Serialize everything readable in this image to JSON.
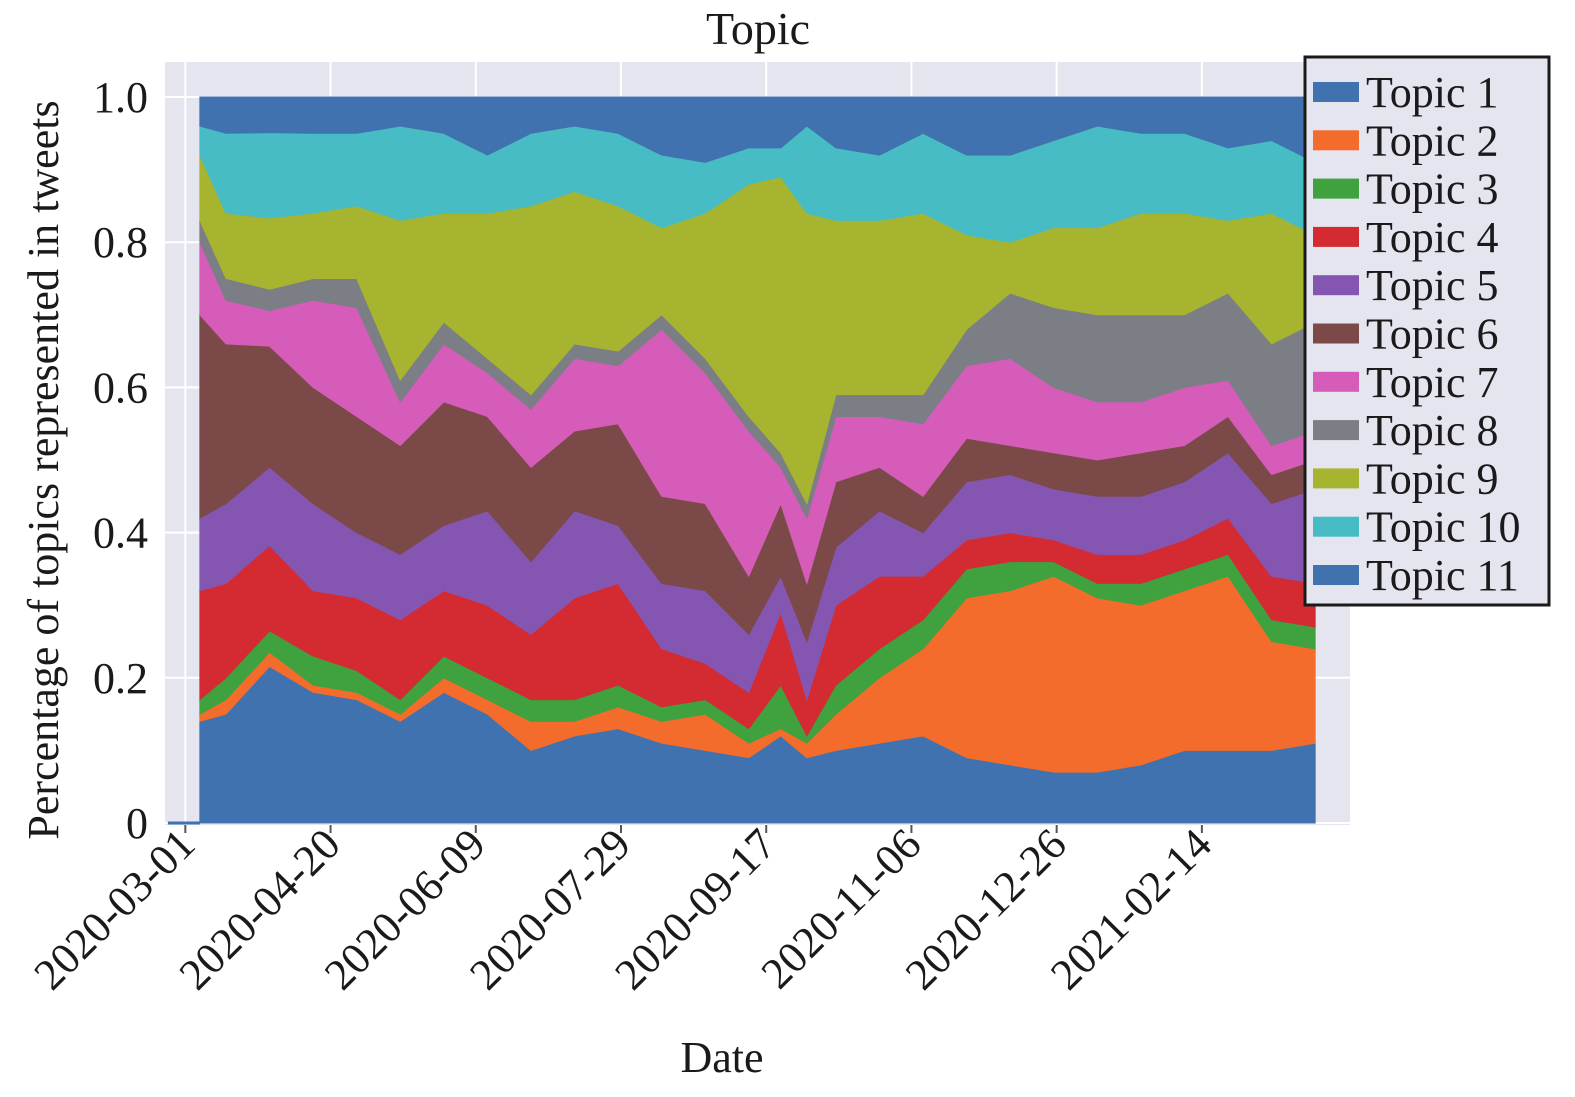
{
  "chart_data": {
    "type": "area",
    "stacked": true,
    "title": "Topic",
    "xlabel": "Date",
    "ylabel": "Percentage of topics represented in tweets",
    "ylim": [
      0,
      1.0
    ],
    "xlim": [
      "2020-02-23",
      "2021-04-06"
    ],
    "grid": true,
    "legend_position": "outside-right-top",
    "y_ticks": [
      "0",
      "0.2",
      "0.4",
      "0.6",
      "0.8",
      "1.0"
    ],
    "x_ticks": [
      "2020-03-01",
      "2020-04-20",
      "2020-06-09",
      "2020-07-29",
      "2020-09-17",
      "2020-11-06",
      "2020-12-26",
      "2021-02-14"
    ],
    "x": [
      "2020-03-06",
      "2020-03-15",
      "2020-03-30",
      "2020-04-14",
      "2020-04-29",
      "2020-05-14",
      "2020-05-29",
      "2020-06-13",
      "2020-06-28",
      "2020-07-13",
      "2020-07-28",
      "2020-08-12",
      "2020-08-27",
      "2020-09-11",
      "2020-09-22",
      "2020-10-01",
      "2020-10-11",
      "2020-10-26",
      "2020-11-10",
      "2020-11-25",
      "2020-12-10",
      "2020-12-25",
      "2021-01-09",
      "2021-01-24",
      "2021-02-08",
      "2021-02-23",
      "2021-03-10",
      "2021-03-25"
    ],
    "series": [
      {
        "name": "Topic 1",
        "color": "#3f72af",
        "values": [
          0.14,
          0.15,
          0.22,
          0.18,
          0.17,
          0.14,
          0.18,
          0.15,
          0.1,
          0.12,
          0.13,
          0.11,
          0.1,
          0.09,
          0.12,
          0.09,
          0.1,
          0.11,
          0.12,
          0.09,
          0.08,
          0.07,
          0.07,
          0.08,
          0.1,
          0.1,
          0.1,
          0.11
        ]
      },
      {
        "name": "Topic 2",
        "color": "#f46c2b",
        "values": [
          0.01,
          0.02,
          0.02,
          0.01,
          0.01,
          0.01,
          0.02,
          0.02,
          0.04,
          0.02,
          0.03,
          0.03,
          0.05,
          0.02,
          0.01,
          0.02,
          0.05,
          0.09,
          0.12,
          0.22,
          0.24,
          0.27,
          0.24,
          0.22,
          0.22,
          0.24,
          0.15,
          0.13
        ]
      },
      {
        "name": "Topic 3",
        "color": "#3fa23f",
        "values": [
          0.02,
          0.03,
          0.03,
          0.04,
          0.03,
          0.02,
          0.03,
          0.03,
          0.03,
          0.03,
          0.03,
          0.02,
          0.02,
          0.02,
          0.06,
          0.01,
          0.04,
          0.04,
          0.04,
          0.04,
          0.04,
          0.02,
          0.02,
          0.03,
          0.03,
          0.03,
          0.03,
          0.03
        ]
      },
      {
        "name": "Topic 4",
        "color": "#d42b33",
        "values": [
          0.15,
          0.13,
          0.12,
          0.09,
          0.1,
          0.11,
          0.09,
          0.1,
          0.09,
          0.14,
          0.14,
          0.08,
          0.05,
          0.05,
          0.1,
          0.05,
          0.11,
          0.1,
          0.06,
          0.04,
          0.04,
          0.03,
          0.04,
          0.04,
          0.04,
          0.05,
          0.06,
          0.06
        ]
      },
      {
        "name": "Topic 5",
        "color": "#8456b2",
        "values": [
          0.1,
          0.11,
          0.11,
          0.12,
          0.09,
          0.09,
          0.09,
          0.13,
          0.1,
          0.12,
          0.08,
          0.09,
          0.1,
          0.08,
          0.05,
          0.08,
          0.08,
          0.09,
          0.06,
          0.08,
          0.08,
          0.07,
          0.08,
          0.08,
          0.08,
          0.09,
          0.1,
          0.13
        ]
      },
      {
        "name": "Topic 6",
        "color": "#7b4a48",
        "values": [
          0.28,
          0.22,
          0.17,
          0.16,
          0.16,
          0.15,
          0.17,
          0.13,
          0.13,
          0.11,
          0.14,
          0.12,
          0.12,
          0.08,
          0.1,
          0.08,
          0.09,
          0.06,
          0.05,
          0.06,
          0.04,
          0.05,
          0.05,
          0.06,
          0.05,
          0.05,
          0.04,
          0.04
        ]
      },
      {
        "name": "Topic 7",
        "color": "#d55cb8",
        "values": [
          0.1,
          0.06,
          0.05,
          0.12,
          0.15,
          0.06,
          0.08,
          0.06,
          0.08,
          0.1,
          0.08,
          0.23,
          0.18,
          0.2,
          0.05,
          0.09,
          0.09,
          0.07,
          0.1,
          0.1,
          0.12,
          0.09,
          0.08,
          0.07,
          0.08,
          0.05,
          0.04,
          0.04
        ]
      },
      {
        "name": "Topic 8",
        "color": "#7c7e86",
        "values": [
          0.03,
          0.03,
          0.03,
          0.03,
          0.04,
          0.03,
          0.03,
          0.02,
          0.02,
          0.02,
          0.02,
          0.02,
          0.02,
          0.02,
          0.02,
          0.02,
          0.03,
          0.03,
          0.04,
          0.05,
          0.09,
          0.11,
          0.12,
          0.12,
          0.1,
          0.12,
          0.14,
          0.15
        ]
      },
      {
        "name": "Topic 9",
        "color": "#a6b42f",
        "values": [
          0.09,
          0.09,
          0.1,
          0.09,
          0.1,
          0.22,
          0.15,
          0.2,
          0.26,
          0.21,
          0.2,
          0.12,
          0.2,
          0.32,
          0.38,
          0.4,
          0.24,
          0.24,
          0.25,
          0.13,
          0.07,
          0.11,
          0.12,
          0.14,
          0.14,
          0.1,
          0.18,
          0.12
        ]
      },
      {
        "name": "Topic 10",
        "color": "#47bcc4",
        "values": [
          0.04,
          0.11,
          0.12,
          0.11,
          0.1,
          0.13,
          0.11,
          0.08,
          0.1,
          0.09,
          0.1,
          0.1,
          0.07,
          0.05,
          0.04,
          0.12,
          0.1,
          0.09,
          0.11,
          0.11,
          0.12,
          0.12,
          0.14,
          0.11,
          0.11,
          0.1,
          0.1,
          0.1
        ]
      },
      {
        "name": "Topic 11",
        "color": "#3f72af",
        "values": [
          0.04,
          0.05,
          0.05,
          0.05,
          0.05,
          0.04,
          0.05,
          0.08,
          0.05,
          0.04,
          0.05,
          0.08,
          0.09,
          0.07,
          0.07,
          0.04,
          0.07,
          0.08,
          0.05,
          0.08,
          0.08,
          0.06,
          0.04,
          0.05,
          0.05,
          0.07,
          0.06,
          0.09
        ]
      }
    ]
  }
}
